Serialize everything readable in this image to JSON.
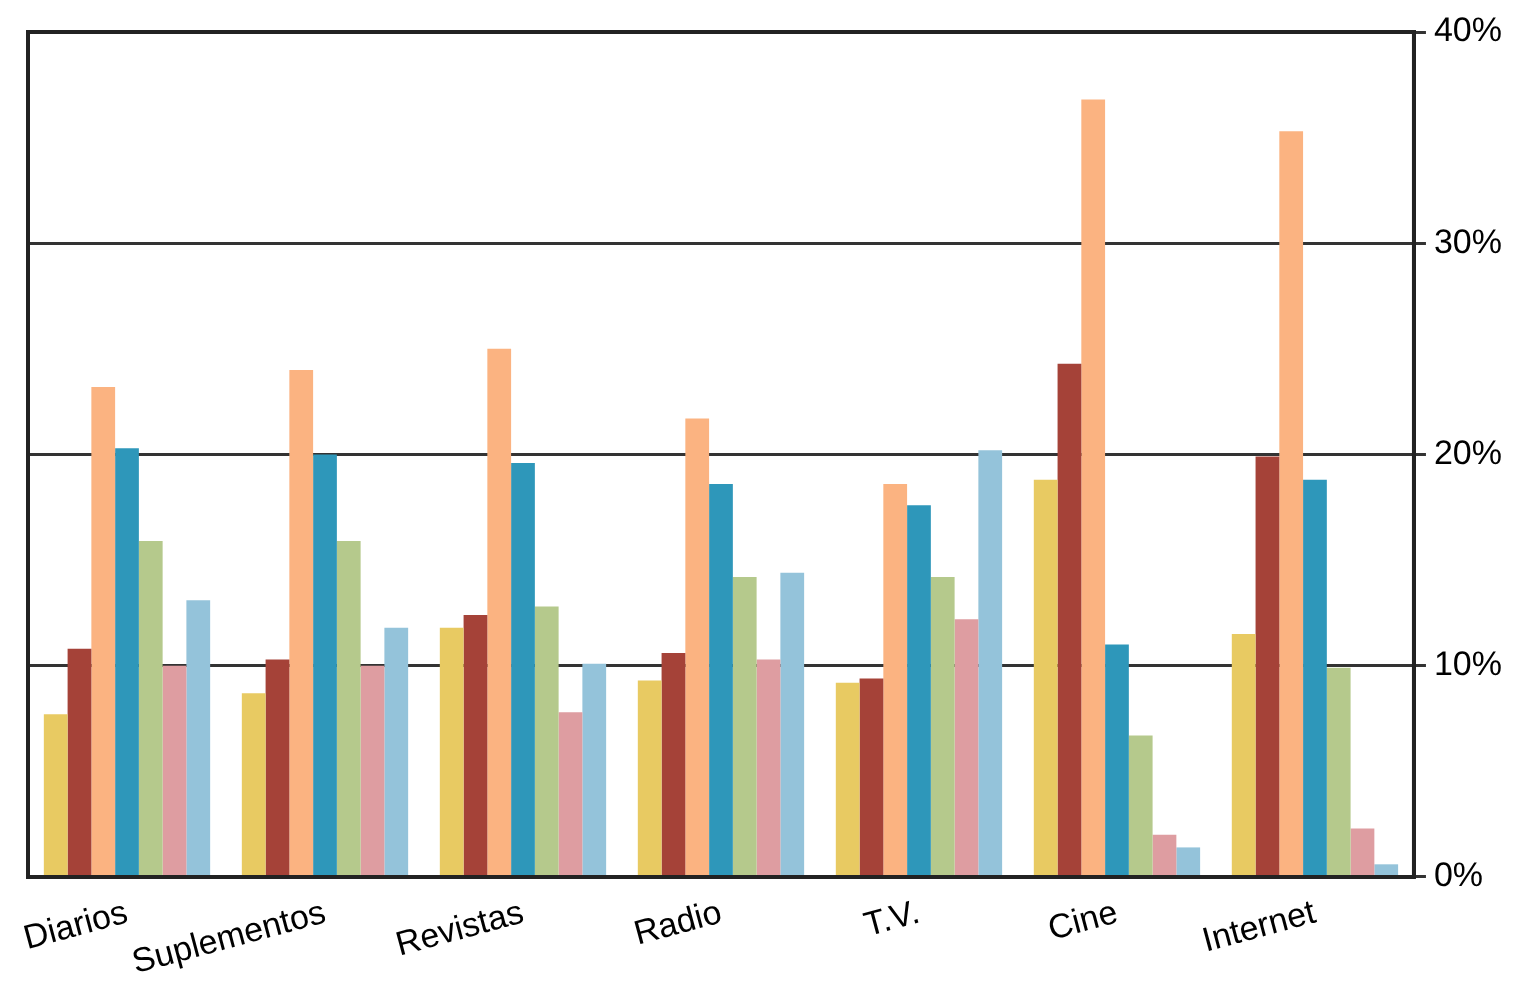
{
  "chart_data": {
    "type": "bar",
    "categories": [
      "Diarios",
      "Suplementos",
      "Revistas",
      "Radio",
      "T.V.",
      "Cine",
      "Internet"
    ],
    "series": [
      {
        "color": "#e8ca62",
        "values": [
          7.7,
          8.7,
          11.8,
          9.3,
          9.2,
          18.8,
          11.5
        ]
      },
      {
        "color": "#a54238",
        "values": [
          10.8,
          10.3,
          12.4,
          10.6,
          9.4,
          24.3,
          19.9
        ]
      },
      {
        "color": "#fbb381",
        "values": [
          23.2,
          24.0,
          25.0,
          21.7,
          18.6,
          36.8,
          35.3
        ]
      },
      {
        "color": "#2e97ba",
        "values": [
          20.3,
          20.0,
          19.6,
          18.6,
          17.6,
          11.0,
          18.8
        ]
      },
      {
        "color": "#b5c98c",
        "values": [
          15.9,
          15.9,
          12.8,
          14.2,
          14.2,
          6.7,
          9.9
        ]
      },
      {
        "color": "#de9da1",
        "values": [
          10.0,
          10.0,
          7.8,
          10.3,
          12.2,
          2.0,
          2.3
        ]
      },
      {
        "color": "#94c3da",
        "values": [
          13.1,
          11.8,
          10.1,
          14.4,
          20.2,
          1.4,
          0.6
        ]
      }
    ],
    "ylim": [
      0,
      40
    ],
    "yticks": [
      {
        "value": 0,
        "label": "0%"
      },
      {
        "value": 10,
        "label": "10%"
      },
      {
        "value": 20,
        "label": "20%"
      },
      {
        "value": 30,
        "label": "30%"
      },
      {
        "value": 40,
        "label": "40%"
      }
    ],
    "grid": "y",
    "legend": false
  }
}
